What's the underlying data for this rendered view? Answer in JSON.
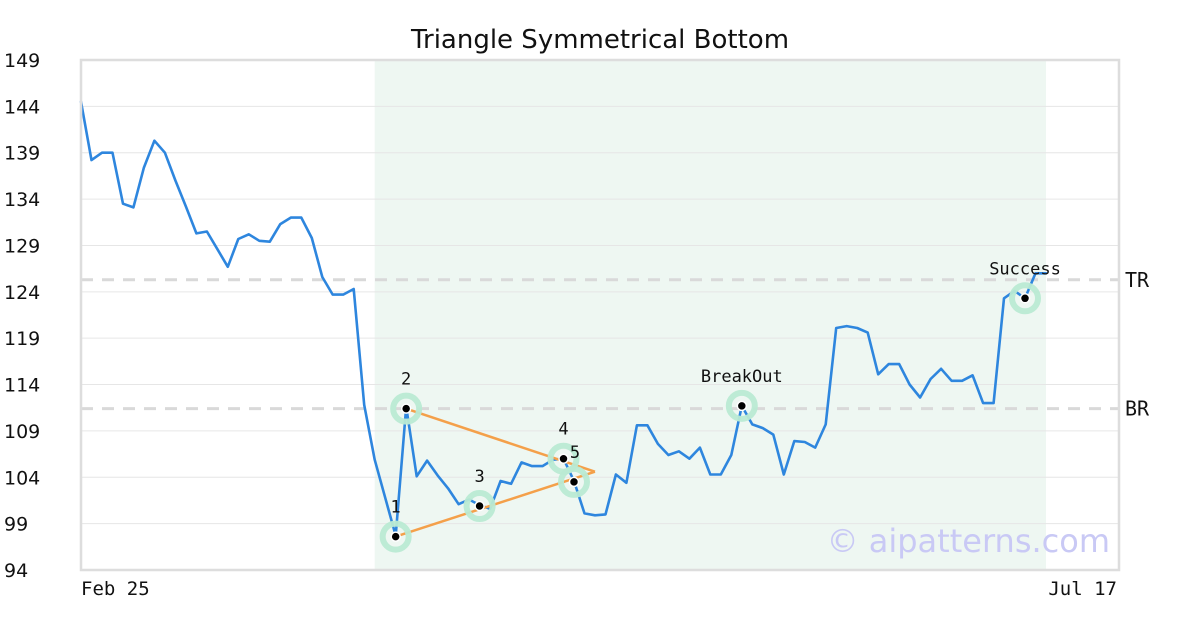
{
  "chart_data": {
    "type": "line",
    "title": "Triangle Symmetrical Bottom",
    "watermark": "© aipatterns.com",
    "ylim": [
      94,
      149
    ],
    "y_ticks": [
      94,
      99,
      104,
      109,
      114,
      119,
      124,
      129,
      134,
      139,
      144,
      149
    ],
    "x_tick_labels": [
      "Feb 25",
      "Jul 17"
    ],
    "grid": true,
    "line_color": "#2e86de",
    "pattern_line_color": "#f4a04a",
    "marker_halo_color": "#b9ead3",
    "highlight_color": "#eef7f2",
    "highlight_range": [
      28,
      92
    ],
    "series": [
      {
        "values": [
          144.5,
          138.2,
          139.0,
          139.0,
          133.5,
          133.1,
          137.4,
          140.3,
          139.0,
          136.0,
          133.2,
          130.3,
          130.5,
          128.6,
          126.7,
          129.7,
          130.2,
          129.5,
          129.4,
          131.3,
          132.0,
          132.0,
          129.8,
          125.6,
          123.7,
          123.7,
          124.3,
          111.8,
          105.9,
          101.8,
          97.7,
          111.6,
          104.1,
          105.8,
          104.2,
          102.8,
          101.1,
          101.6,
          101.0,
          100.6,
          103.6,
          103.3,
          105.6,
          105.2,
          105.2,
          105.9,
          106.0,
          103.6,
          100.1,
          99.9,
          100.0,
          104.3,
          103.4,
          109.6,
          109.6,
          107.6,
          106.4,
          106.8,
          106.0,
          107.2,
          104.3,
          104.3,
          106.4,
          111.7,
          109.7,
          109.3,
          108.6,
          104.3,
          107.9,
          107.8,
          107.2,
          109.7,
          120.1,
          120.3,
          120.1,
          119.6,
          115.1,
          116.2,
          116.2,
          114.0,
          112.6,
          114.6,
          115.7,
          114.4,
          114.4,
          115.0,
          112.0,
          112.0,
          123.3,
          124.1,
          123.3,
          126.0,
          126.0
        ]
      }
    ],
    "levels": [
      {
        "label": "TR",
        "value": 125.3
      },
      {
        "label": "BR",
        "value": 111.4
      }
    ],
    "pattern_points": [
      {
        "label": "1",
        "index": 30,
        "value": 97.6
      },
      {
        "label": "2",
        "index": 31,
        "value": 111.4
      },
      {
        "label": "3",
        "index": 38,
        "value": 100.9
      },
      {
        "label": "4",
        "index": 46,
        "value": 106.0
      },
      {
        "label": "5",
        "index": 47,
        "value": 103.5
      }
    ],
    "triangle_apex": {
      "index": 49,
      "value": 104.6
    },
    "events": [
      {
        "label": "BreakOut",
        "index": 63,
        "value": 111.7
      },
      {
        "label": "Success",
        "index": 90,
        "value": 123.3
      }
    ]
  }
}
